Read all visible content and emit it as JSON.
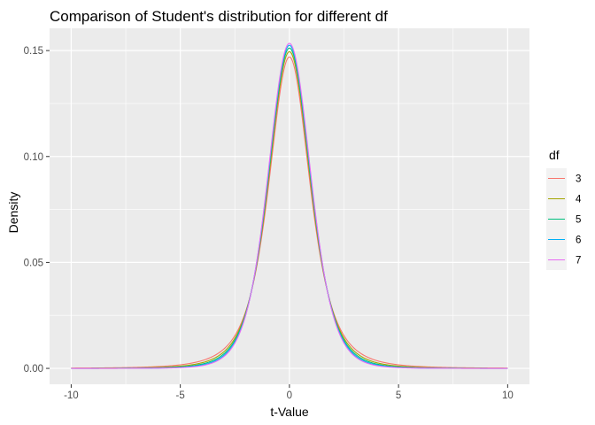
{
  "chart_data": {
    "type": "line",
    "title": "Comparison of Student's distribution for different df",
    "xlabel": "t-Value",
    "ylabel": "Density",
    "xlim": [
      -10,
      10
    ],
    "ylim": [
      0,
      0.155
    ],
    "x_ticks": [
      -10,
      -5,
      0,
      5,
      10
    ],
    "y_ticks": [
      0.0,
      0.05,
      0.1,
      0.15
    ],
    "x_tick_labels": [
      "-10",
      "-5",
      "0",
      "5",
      "10"
    ],
    "y_tick_labels": [
      "0.00",
      "0.05",
      "0.10",
      "0.15"
    ],
    "grid": true,
    "legend": {
      "title": "df",
      "position": "right"
    },
    "series": [
      {
        "name": "3",
        "color": "#F8766D",
        "df": 3,
        "x": [
          -10,
          -7.5,
          -5,
          -2.5,
          0,
          2.5,
          5,
          7.5,
          10
        ],
        "y": [
          0.0036,
          0.008,
          0.0267,
          0.0891,
          0.147,
          0.0891,
          0.0267,
          0.008,
          0.0036
        ]
      },
      {
        "name": "4",
        "color": "#A3A500",
        "df": 4,
        "x": [
          -10,
          -7.5,
          -5,
          -2.5,
          0,
          2.5,
          5,
          7.5,
          10
        ],
        "y": [
          0.0029,
          0.007,
          0.0258,
          0.0897,
          0.1495,
          0.0897,
          0.0258,
          0.007,
          0.0029
        ]
      },
      {
        "name": "5",
        "color": "#00BF7D",
        "df": 5,
        "x": [
          -10,
          -7.5,
          -5,
          -2.5,
          0,
          2.5,
          5,
          7.5,
          10
        ],
        "y": [
          0.0024,
          0.0062,
          0.0251,
          0.0901,
          0.1512,
          0.0901,
          0.0251,
          0.0062,
          0.0024
        ]
      },
      {
        "name": "6",
        "color": "#00B0F6",
        "df": 6,
        "x": [
          -10,
          -7.5,
          -5,
          -2.5,
          0,
          2.5,
          5,
          7.5,
          10
        ],
        "y": [
          0.002,
          0.0056,
          0.0245,
          0.0904,
          0.1525,
          0.0904,
          0.0245,
          0.0056,
          0.002
        ]
      },
      {
        "name": "7",
        "color": "#E76BF3",
        "df": 7,
        "x": [
          -10,
          -7.5,
          -5,
          -2.5,
          0,
          2.5,
          5,
          7.5,
          10
        ],
        "y": [
          0.0017,
          0.0051,
          0.0241,
          0.0906,
          0.1534,
          0.0906,
          0.0241,
          0.0051,
          0.0017
        ]
      }
    ]
  }
}
